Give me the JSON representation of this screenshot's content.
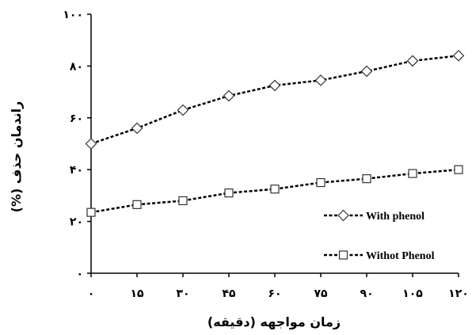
{
  "chart_data": {
    "type": "line",
    "title": "",
    "xlabel": "زمان مواجهه (دقیقه)",
    "ylabel": "راندمان حذف (%)",
    "x": [
      0,
      15,
      30,
      45,
      60,
      75,
      90,
      105,
      120
    ],
    "x_tick_labels": [
      "۰",
      "۱۵",
      "۳۰",
      "۴۵",
      "۶۰",
      "۷۵",
      "۹۰",
      "۱۰۵",
      "۱۲۰"
    ],
    "y_tick_values": [
      0,
      20,
      40,
      60,
      80,
      100
    ],
    "y_tick_labels": [
      "۰",
      "۲۰",
      "۴۰",
      "۶۰",
      "۸۰",
      "۱۰۰"
    ],
    "xlim": [
      0,
      120
    ],
    "ylim": [
      0,
      100
    ],
    "grid": false,
    "legend_position": "bottom-right",
    "series": [
      {
        "name": "With phenol",
        "marker": "diamond",
        "values": [
          50,
          56,
          63,
          68.5,
          72.5,
          74.5,
          78,
          82,
          84
        ]
      },
      {
        "name": "Withot Phenol",
        "marker": "square",
        "values": [
          23.5,
          26.5,
          28,
          31,
          32.5,
          35,
          36.5,
          38.5,
          40
        ]
      }
    ],
    "colors": {
      "line": "#000000",
      "marker_fill": "#ffffff",
      "marker_stroke": "#333333"
    }
  }
}
